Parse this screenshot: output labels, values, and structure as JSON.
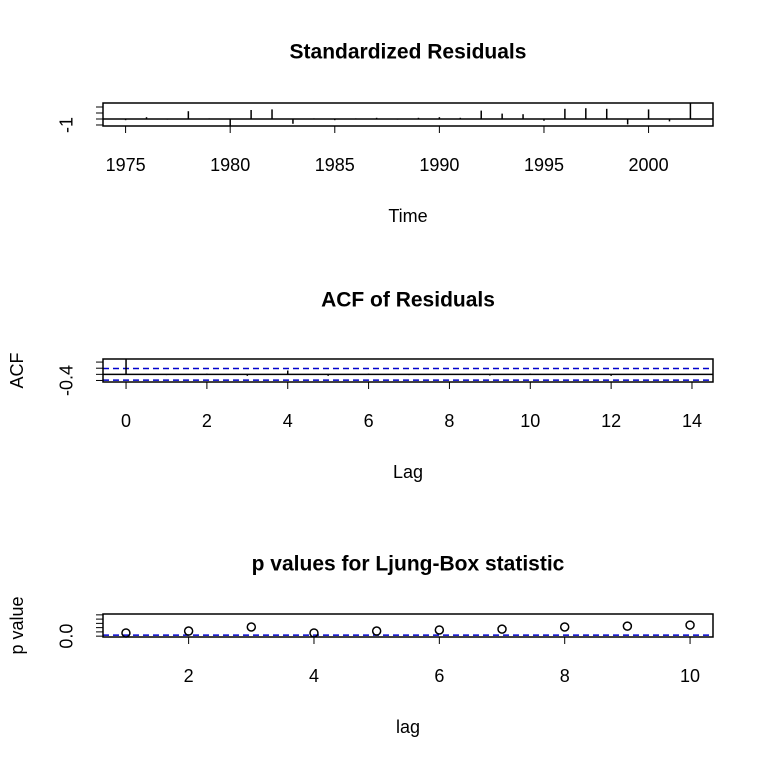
{
  "chart_data": [
    {
      "type": "stem",
      "title": "Standardized Residuals",
      "xlabel": "Time",
      "x": [
        1975,
        1976,
        1977,
        1978,
        1979,
        1980,
        1981,
        1982,
        1983,
        1984,
        1985,
        1986,
        1987,
        1988,
        1989,
        1990,
        1991,
        1992,
        1993,
        1994,
        1995,
        1996,
        1997,
        1998,
        1999,
        2000,
        2001,
        2002
      ],
      "values": [
        -0.2,
        0.3,
        -0.1,
        1.3,
        0.1,
        -1.1,
        1.5,
        1.6,
        -0.8,
        0.1,
        -0.2,
        0.1,
        0.2,
        -0.1,
        0.2,
        0.3,
        0.2,
        1.4,
        0.9,
        0.8,
        -0.3,
        1.7,
        1.8,
        1.7,
        -0.9,
        1.6,
        -0.4,
        2.6
      ],
      "color": "#000000",
      "xlim": [
        1973.92,
        2003.08
      ],
      "xticks": [
        1975,
        1980,
        1985,
        1990,
        1995,
        2000
      ],
      "ylim": [
        -1.17,
        2.67
      ],
      "yticks": [
        -1,
        {
          "value": 0,
          "label": null
        },
        {
          "value": 1,
          "label": null
        },
        {
          "value": 2,
          "label": null
        }
      ],
      "hlines": [
        {
          "value": 0,
          "color": "#000000",
          "dashed": false
        }
      ]
    },
    {
      "type": "stem",
      "title": "ACF of Residuals",
      "xlabel": "Lag",
      "ylabel": "ACF",
      "x": [
        0,
        1,
        2,
        3,
        4,
        5,
        6,
        7,
        8,
        9,
        10,
        11,
        12,
        13,
        14
      ],
      "values": [
        1,
        -0.05,
        0.05,
        -0.1,
        0.25,
        -0.1,
        0.05,
        -0.05,
        0.02,
        -0.08,
        0.05,
        0.03,
        -0.1,
        0.04,
        -0.02
      ],
      "color": "#000000",
      "xlim": [
        -0.57,
        14.52
      ],
      "xticks": [
        0,
        2,
        4,
        6,
        8,
        10,
        12,
        14
      ],
      "ylim": [
        -0.5,
        1.0
      ],
      "yticks": [
        {
          "value": -0.4,
          "label": "-0.4"
        },
        {
          "value": 0,
          "label": null
        },
        {
          "value": 0.4,
          "label": null
        },
        {
          "value": 0.8,
          "label": null
        }
      ],
      "hlines": [
        {
          "value": 0,
          "color": "#000000",
          "dashed": false
        },
        {
          "value": -0.378,
          "color": "#0000cc",
          "dashed": true
        },
        {
          "value": 0.378,
          "color": "#0000cc",
          "dashed": true
        }
      ]
    },
    {
      "type": "scatter",
      "title": "p values for Ljung-Box statistic",
      "xlabel": "lag",
      "ylabel": "p value",
      "x": [
        1,
        2,
        3,
        4,
        5,
        6,
        7,
        8,
        9,
        10
      ],
      "values": [
        0.15,
        0.24,
        0.43,
        0.15,
        0.24,
        0.29,
        0.33,
        0.43,
        0.47,
        0.52
      ],
      "color": "#000000",
      "xlim": [
        0.634,
        10.366
      ],
      "xticks": [
        2,
        4,
        6,
        8,
        10
      ],
      "ylim": [
        -0.04,
        1.04
      ],
      "yticks": [
        {
          "value": 0,
          "label": "0.0"
        },
        {
          "value": 0.2,
          "label": null
        },
        {
          "value": 0.4,
          "label": null
        },
        {
          "value": 0.6,
          "label": null
        },
        {
          "value": 0.8,
          "label": null
        },
        {
          "value": 1.0,
          "label": null
        }
      ],
      "hlines": [
        {
          "value": 0.05,
          "color": "#0000cc",
          "dashed": true
        }
      ]
    }
  ]
}
